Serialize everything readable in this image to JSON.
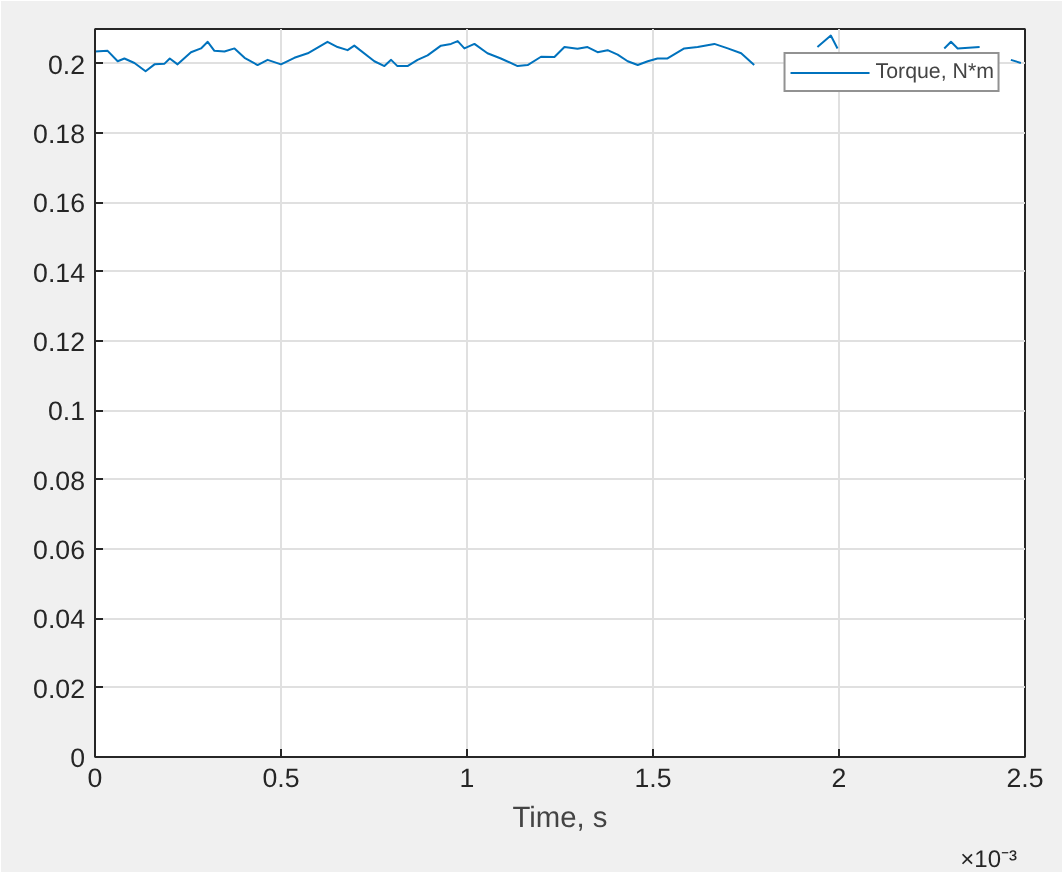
{
  "chart_data": {
    "type": "line",
    "xlabel": "Time, s",
    "annotations": [
      "×10⁻³"
    ],
    "xlim": [
      0,
      2.5
    ],
    "ylim": [
      0,
      0.21
    ],
    "xticks": [
      0,
      0.5,
      1,
      1.5,
      2,
      2.5
    ],
    "yticks": [
      0,
      0.02,
      0.04,
      0.06,
      0.08,
      0.1,
      0.12,
      0.14,
      0.16,
      0.18,
      0.2
    ],
    "grid": true,
    "legend": "top right",
    "line_style": "solid",
    "series": [
      {
        "name": "Torque, N*m",
        "color": "#0072bd",
        "x": [
          0,
          0.034,
          0.061,
          0.079,
          0.106,
          0.136,
          0.16,
          0.187,
          0.201,
          0.222,
          0.258,
          0.285,
          0.303,
          0.321,
          0.348,
          0.375,
          0.402,
          0.437,
          0.464,
          0.5,
          0.536,
          0.572,
          0.625,
          0.652,
          0.679,
          0.697,
          0.751,
          0.778,
          0.796,
          0.813,
          0.84,
          0.867,
          0.894,
          0.93,
          0.957,
          0.975,
          0.993,
          1.02,
          1.055,
          1.091,
          1.136,
          1.163,
          1.199,
          1.235,
          1.262,
          1.297,
          1.324,
          1.351,
          1.378,
          1.405,
          1.432,
          1.459,
          1.486,
          1.512,
          1.539,
          1.584,
          1.62,
          1.665,
          1.701,
          1.737,
          1.772,
          1.79,
          1.85,
          1.942,
          1.978,
          1.996,
          2.1,
          2.283,
          2.301,
          2.319,
          2.378,
          2.42,
          2.462,
          2.489
        ],
        "values": [
          0.2035,
          0.2037,
          0.2007,
          0.2015,
          0.2002,
          0.1978,
          0.1998,
          0.2,
          0.2015,
          0.1998,
          0.2033,
          0.2044,
          0.2063,
          0.2037,
          0.2035,
          0.2044,
          0.2017,
          0.1996,
          0.2011,
          0.1998,
          0.2017,
          0.203,
          0.2063,
          0.2048,
          0.2039,
          0.2052,
          0.2007,
          0.1993,
          0.2011,
          0.1993,
          0.1993,
          0.2011,
          0.2024,
          0.2052,
          0.2057,
          0.2065,
          0.2044,
          0.2057,
          0.203,
          0.2015,
          0.1993,
          0.1996,
          0.202,
          0.2019,
          0.2048,
          0.2043,
          0.2048,
          0.2033,
          0.2039,
          0.2026,
          0.2007,
          0.1996,
          0.2007,
          0.2015,
          0.2015,
          0.2044,
          0.2048,
          0.2057,
          0.2044,
          0.203,
          0.1996,
          null,
          null,
          0.2048,
          0.2081,
          0.2044,
          null,
          0.2044,
          0.2063,
          0.2044,
          0.2048,
          null,
          0.2011,
          0.2002
        ]
      }
    ]
  }
}
